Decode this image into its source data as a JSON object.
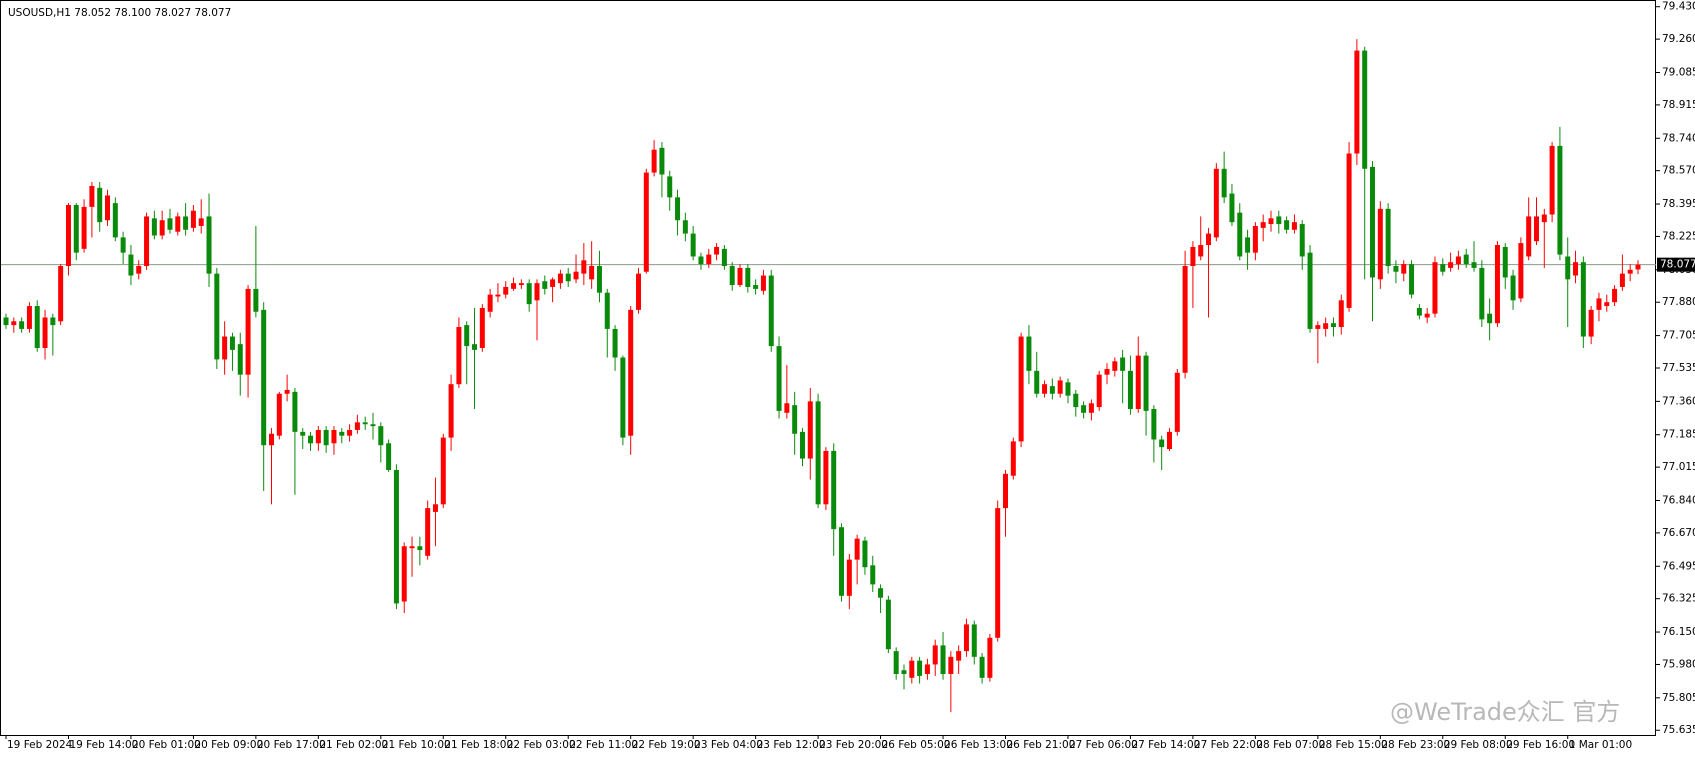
{
  "chart_data": {
    "type": "candlestick",
    "title": "USOUSD,H1  78.052 78.100 78.027 78.077",
    "watermark": "@WeTrade众汇 官方",
    "colors": {
      "up": "#ff0000",
      "down": "#0a8a0a",
      "price_line": "#8c9a8c"
    },
    "current_price": 78.077,
    "ylim": [
      75.61,
      79.46
    ],
    "yticks": [
      {
        "value": 79.43,
        "label": "79.430"
      },
      {
        "value": 79.26,
        "label": "79.260"
      },
      {
        "value": 79.085,
        "label": "79.085"
      },
      {
        "value": 78.915,
        "label": "78.915"
      },
      {
        "value": 78.74,
        "label": "78.740"
      },
      {
        "value": 78.57,
        "label": "78.570"
      },
      {
        "value": 78.395,
        "label": "78.395"
      },
      {
        "value": 78.225,
        "label": "78.225"
      },
      {
        "value": 78.05,
        "label": "78.050"
      },
      {
        "value": 77.88,
        "label": "77.880"
      },
      {
        "value": 77.705,
        "label": "77.705"
      },
      {
        "value": 77.535,
        "label": "77.535"
      },
      {
        "value": 77.36,
        "label": "77.360"
      },
      {
        "value": 77.185,
        "label": "77.185"
      },
      {
        "value": 77.015,
        "label": "77.015"
      },
      {
        "value": 76.84,
        "label": "76.840"
      },
      {
        "value": 76.67,
        "label": "76.670"
      },
      {
        "value": 76.495,
        "label": "76.495"
      },
      {
        "value": 76.325,
        "label": "76.325"
      },
      {
        "value": 76.15,
        "label": "76.150"
      },
      {
        "value": 75.98,
        "label": "75.980"
      },
      {
        "value": 75.805,
        "label": "75.805"
      },
      {
        "value": 75.635,
        "label": "75.635"
      }
    ],
    "x_labels": [
      "19 Feb 2024",
      "19 Feb 14:00",
      "20 Feb 01:00",
      "20 Feb 09:00",
      "20 Feb 17:00",
      "21 Feb 02:00",
      "21 Feb 10:00",
      "21 Feb 18:00",
      "22 Feb 03:00",
      "22 Feb 11:00",
      "22 Feb 19:00",
      "23 Feb 04:00",
      "23 Feb 12:00",
      "23 Feb 20:00",
      "26 Feb 05:00",
      "26 Feb 13:00",
      "26 Feb 21:00",
      "27 Feb 06:00",
      "27 Feb 14:00",
      "27 Feb 22:00",
      "28 Feb 07:00",
      "28 Feb 15:00",
      "28 Feb 23:00",
      "29 Feb 08:00",
      "29 Feb 16:00",
      "1 Mar 01:00"
    ],
    "ohlc": [
      [
        77.8,
        77.82,
        77.74,
        77.76
      ],
      [
        77.76,
        77.8,
        77.72,
        77.78
      ],
      [
        77.78,
        77.8,
        77.72,
        77.74
      ],
      [
        77.74,
        77.88,
        77.72,
        77.86
      ],
      [
        77.86,
        77.89,
        77.62,
        77.64
      ],
      [
        77.64,
        77.84,
        77.58,
        77.8
      ],
      [
        77.8,
        77.82,
        77.6,
        77.76
      ],
      [
        77.78,
        78.08,
        77.76,
        78.07
      ],
      [
        78.07,
        78.4,
        78.02,
        78.39
      ],
      [
        78.39,
        78.4,
        78.1,
        78.14
      ],
      [
        78.16,
        78.42,
        78.14,
        78.38
      ],
      [
        78.38,
        78.51,
        78.22,
        78.49
      ],
      [
        78.48,
        78.51,
        78.25,
        78.3
      ],
      [
        78.31,
        78.47,
        78.28,
        78.44
      ],
      [
        78.4,
        78.43,
        78.2,
        78.22
      ],
      [
        78.22,
        78.25,
        78.08,
        78.14
      ],
      [
        78.13,
        78.18,
        77.97,
        78.02
      ],
      [
        78.03,
        78.1,
        78.0,
        78.07
      ],
      [
        78.07,
        78.35,
        78.05,
        78.33
      ],
      [
        78.32,
        78.36,
        78.21,
        78.23
      ],
      [
        78.23,
        78.36,
        78.21,
        78.31
      ],
      [
        78.32,
        78.37,
        78.24,
        78.26
      ],
      [
        78.25,
        78.35,
        78.23,
        78.33
      ],
      [
        78.33,
        78.4,
        78.23,
        78.26
      ],
      [
        78.27,
        78.39,
        78.25,
        78.36
      ],
      [
        78.28,
        78.42,
        78.24,
        78.32
      ],
      [
        78.33,
        78.45,
        77.96,
        78.03
      ],
      [
        78.03,
        78.06,
        77.53,
        77.58
      ],
      [
        77.58,
        77.78,
        77.5,
        77.7
      ],
      [
        77.7,
        77.72,
        77.52,
        77.63
      ],
      [
        77.66,
        77.72,
        77.39,
        77.5
      ],
      [
        77.5,
        77.97,
        77.38,
        77.95
      ],
      [
        77.95,
        78.28,
        77.8,
        77.83
      ],
      [
        77.84,
        77.88,
        76.89,
        77.13
      ],
      [
        77.13,
        77.22,
        76.82,
        77.19
      ],
      [
        77.18,
        77.41,
        77.16,
        77.4
      ],
      [
        77.4,
        77.5,
        77.36,
        77.42
      ],
      [
        77.41,
        77.43,
        76.87,
        77.2
      ],
      [
        77.2,
        77.22,
        77.11,
        77.18
      ],
      [
        77.18,
        77.2,
        77.1,
        77.14
      ],
      [
        77.14,
        77.23,
        77.1,
        77.21
      ],
      [
        77.21,
        77.23,
        77.09,
        77.13
      ],
      [
        77.14,
        77.23,
        77.08,
        77.21
      ],
      [
        77.2,
        77.22,
        77.14,
        77.18
      ],
      [
        77.18,
        77.24,
        77.15,
        77.21
      ],
      [
        77.21,
        77.29,
        77.19,
        77.25
      ],
      [
        77.25,
        77.28,
        77.21,
        77.24
      ],
      [
        77.24,
        77.3,
        77.16,
        77.23
      ],
      [
        77.23,
        77.25,
        77.04,
        77.13
      ],
      [
        77.14,
        77.16,
        76.99,
        77.0
      ],
      [
        77.0,
        77.03,
        76.27,
        76.3
      ],
      [
        76.31,
        76.62,
        76.25,
        76.6
      ],
      [
        76.59,
        76.65,
        76.44,
        76.6
      ],
      [
        76.6,
        76.65,
        76.5,
        76.58
      ],
      [
        76.55,
        76.84,
        76.53,
        76.8
      ],
      [
        76.78,
        76.96,
        76.6,
        76.82
      ],
      [
        76.82,
        77.19,
        76.8,
        77.17
      ],
      [
        77.17,
        77.5,
        77.1,
        77.45
      ],
      [
        77.45,
        77.8,
        77.43,
        77.75
      ],
      [
        77.76,
        77.78,
        77.45,
        77.65
      ],
      [
        77.66,
        77.85,
        77.32,
        77.63
      ],
      [
        77.64,
        77.87,
        77.62,
        77.85
      ],
      [
        77.83,
        77.95,
        77.8,
        77.92
      ],
      [
        77.91,
        77.98,
        77.88,
        77.92
      ],
      [
        77.92,
        77.99,
        77.9,
        77.96
      ],
      [
        77.95,
        78.01,
        77.94,
        77.98
      ],
      [
        77.97,
        78.0,
        77.95,
        77.98
      ],
      [
        77.98,
        78.0,
        77.83,
        77.87
      ],
      [
        77.89,
        78.0,
        77.68,
        77.98
      ],
      [
        77.99,
        78.02,
        77.92,
        77.95
      ],
      [
        77.96,
        78.01,
        77.88,
        78.0
      ],
      [
        77.98,
        78.05,
        77.95,
        78.03
      ],
      [
        78.03,
        78.06,
        77.96,
        77.99
      ],
      [
        78.0,
        78.13,
        77.98,
        78.04
      ],
      [
        78.03,
        78.19,
        77.97,
        78.1
      ],
      [
        78.0,
        78.2,
        77.95,
        78.07
      ],
      [
        78.07,
        78.15,
        77.88,
        77.93
      ],
      [
        77.93,
        77.95,
        77.59,
        77.74
      ],
      [
        77.74,
        77.76,
        77.52,
        77.59
      ],
      [
        77.59,
        77.6,
        77.13,
        77.17
      ],
      [
        77.18,
        77.86,
        77.08,
        77.84
      ],
      [
        77.84,
        78.06,
        77.82,
        78.03
      ],
      [
        78.04,
        78.58,
        78.03,
        78.56
      ],
      [
        78.56,
        78.73,
        78.54,
        78.68
      ],
      [
        78.69,
        78.72,
        78.43,
        78.55
      ],
      [
        78.54,
        78.57,
        78.36,
        78.43
      ],
      [
        78.43,
        78.47,
        78.23,
        78.31
      ],
      [
        78.31,
        78.35,
        78.2,
        78.24
      ],
      [
        78.24,
        78.28,
        78.1,
        78.12
      ],
      [
        78.12,
        78.14,
        78.05,
        78.08
      ],
      [
        78.08,
        78.16,
        78.06,
        78.13
      ],
      [
        78.13,
        78.19,
        78.1,
        78.17
      ],
      [
        78.16,
        78.18,
        78.05,
        78.07
      ],
      [
        78.07,
        78.09,
        77.94,
        77.97
      ],
      [
        77.97,
        78.08,
        77.96,
        78.06
      ],
      [
        78.06,
        78.08,
        77.93,
        77.96
      ],
      [
        77.97,
        78.0,
        77.92,
        77.95
      ],
      [
        77.94,
        78.05,
        77.92,
        78.02
      ],
      [
        78.02,
        78.05,
        77.62,
        77.65
      ],
      [
        77.65,
        77.7,
        77.27,
        77.31
      ],
      [
        77.3,
        77.55,
        77.27,
        77.35
      ],
      [
        77.34,
        77.41,
        77.08,
        77.19
      ],
      [
        77.2,
        77.22,
        77.02,
        77.06
      ],
      [
        77.06,
        77.43,
        76.95,
        77.36
      ],
      [
        77.36,
        77.4,
        76.8,
        76.82
      ],
      [
        76.82,
        77.12,
        76.79,
        77.1
      ],
      [
        77.1,
        77.14,
        76.55,
        76.69
      ],
      [
        76.7,
        76.72,
        76.31,
        76.34
      ],
      [
        76.34,
        76.56,
        76.27,
        76.53
      ],
      [
        76.53,
        76.66,
        76.4,
        76.64
      ],
      [
        76.63,
        76.65,
        76.45,
        76.49
      ],
      [
        76.5,
        76.55,
        76.36,
        76.4
      ],
      [
        76.38,
        76.4,
        76.25,
        76.33
      ],
      [
        76.32,
        76.34,
        76.04,
        76.06
      ],
      [
        76.05,
        76.07,
        75.9,
        75.93
      ],
      [
        75.95,
        75.98,
        75.85,
        75.93
      ],
      [
        75.91,
        76.02,
        75.88,
        76.0
      ],
      [
        76.0,
        76.02,
        75.88,
        75.92
      ],
      [
        75.93,
        76.01,
        75.9,
        75.98
      ],
      [
        75.98,
        76.11,
        75.92,
        76.08
      ],
      [
        76.08,
        76.15,
        75.9,
        75.93
      ],
      [
        75.93,
        76.05,
        75.73,
        76.02
      ],
      [
        76.0,
        76.08,
        75.93,
        76.05
      ],
      [
        76.05,
        76.22,
        76.02,
        76.19
      ],
      [
        76.19,
        76.21,
        75.98,
        76.02
      ],
      [
        76.02,
        76.04,
        75.88,
        75.91
      ],
      [
        75.91,
        76.14,
        75.89,
        76.12
      ],
      [
        76.12,
        76.84,
        76.1,
        76.8
      ],
      [
        76.8,
        77.0,
        76.65,
        76.98
      ],
      [
        76.97,
        77.17,
        76.95,
        77.15
      ],
      [
        77.15,
        77.72,
        77.12,
        77.7
      ],
      [
        77.7,
        77.76,
        77.45,
        77.52
      ],
      [
        77.52,
        77.62,
        77.38,
        77.4
      ],
      [
        77.4,
        77.47,
        77.38,
        77.45
      ],
      [
        77.44,
        77.48,
        77.37,
        77.4
      ],
      [
        77.4,
        77.49,
        77.38,
        77.47
      ],
      [
        77.46,
        77.48,
        77.35,
        77.39
      ],
      [
        77.4,
        77.42,
        77.28,
        77.33
      ],
      [
        77.34,
        77.36,
        77.27,
        77.3
      ],
      [
        77.3,
        77.37,
        77.26,
        77.35
      ],
      [
        77.33,
        77.52,
        77.31,
        77.5
      ],
      [
        77.5,
        77.56,
        77.45,
        77.53
      ],
      [
        77.52,
        77.59,
        77.49,
        77.57
      ],
      [
        77.59,
        77.63,
        77.35,
        77.52
      ],
      [
        77.52,
        77.6,
        77.29,
        77.32
      ],
      [
        77.32,
        77.7,
        77.3,
        77.6
      ],
      [
        77.6,
        77.62,
        77.18,
        77.31
      ],
      [
        77.32,
        77.34,
        77.04,
        77.16
      ],
      [
        77.16,
        77.18,
        77.0,
        77.12
      ],
      [
        77.11,
        77.22,
        77.1,
        77.2
      ],
      [
        77.2,
        77.53,
        77.18,
        77.51
      ],
      [
        77.51,
        78.15,
        77.48,
        78.07
      ],
      [
        78.07,
        78.2,
        77.85,
        78.17
      ],
      [
        78.12,
        78.33,
        78.1,
        78.18
      ],
      [
        78.18,
        78.27,
        77.8,
        78.24
      ],
      [
        78.22,
        78.61,
        78.2,
        78.58
      ],
      [
        78.58,
        78.67,
        78.4,
        78.43
      ],
      [
        78.45,
        78.5,
        78.28,
        78.3
      ],
      [
        78.35,
        78.4,
        78.1,
        78.12
      ],
      [
        78.22,
        78.26,
        78.05,
        78.14
      ],
      [
        78.14,
        78.3,
        78.1,
        78.28
      ],
      [
        78.27,
        78.34,
        78.2,
        78.3
      ],
      [
        78.29,
        78.36,
        78.25,
        78.32
      ],
      [
        78.33,
        78.36,
        78.24,
        78.29
      ],
      [
        78.31,
        78.33,
        78.24,
        78.26
      ],
      [
        78.26,
        78.34,
        78.24,
        78.3
      ],
      [
        78.29,
        78.31,
        78.05,
        78.12
      ],
      [
        78.14,
        78.18,
        77.72,
        77.74
      ],
      [
        77.74,
        77.78,
        77.56,
        77.76
      ],
      [
        77.74,
        77.8,
        77.7,
        77.77
      ],
      [
        77.77,
        77.8,
        77.7,
        77.75
      ],
      [
        77.75,
        77.92,
        77.71,
        77.89
      ],
      [
        77.85,
        78.72,
        77.83,
        78.66
      ],
      [
        78.66,
        79.26,
        78.6,
        79.2
      ],
      [
        79.2,
        79.22,
        78.0,
        78.58
      ],
      [
        78.59,
        78.62,
        77.78,
        78.01
      ],
      [
        78.0,
        78.41,
        77.95,
        78.37
      ],
      [
        78.37,
        78.4,
        78.03,
        78.07
      ],
      [
        78.07,
        78.1,
        77.98,
        78.04
      ],
      [
        78.03,
        78.1,
        77.99,
        78.08
      ],
      [
        78.08,
        78.1,
        77.9,
        77.92
      ],
      [
        77.85,
        77.87,
        77.79,
        77.81
      ],
      [
        77.8,
        77.85,
        77.77,
        77.82
      ],
      [
        77.82,
        78.12,
        77.8,
        78.09
      ],
      [
        78.08,
        78.11,
        78.02,
        78.04
      ],
      [
        78.06,
        78.14,
        78.04,
        78.09
      ],
      [
        78.08,
        78.15,
        78.05,
        78.12
      ],
      [
        78.13,
        78.16,
        78.06,
        78.08
      ],
      [
        78.09,
        78.2,
        78.04,
        78.06
      ],
      [
        78.06,
        78.1,
        77.75,
        77.79
      ],
      [
        77.82,
        77.9,
        77.68,
        77.77
      ],
      [
        77.77,
        78.2,
        77.75,
        78.18
      ],
      [
        78.17,
        78.19,
        77.95,
        78.01
      ],
      [
        78.02,
        78.05,
        77.84,
        77.89
      ],
      [
        77.9,
        78.22,
        77.88,
        78.19
      ],
      [
        78.12,
        78.43,
        78.1,
        78.33
      ],
      [
        78.2,
        78.43,
        78.18,
        78.33
      ],
      [
        78.3,
        78.37,
        78.06,
        78.34
      ],
      [
        78.34,
        78.72,
        78.3,
        78.7
      ],
      [
        78.7,
        78.8,
        78.1,
        78.13
      ],
      [
        78.12,
        78.22,
        77.75,
        78.0
      ],
      [
        78.02,
        78.15,
        77.98,
        78.09
      ],
      [
        78.09,
        78.12,
        77.64,
        77.7
      ],
      [
        77.7,
        77.86,
        77.66,
        77.84
      ],
      [
        77.84,
        77.93,
        77.78,
        77.9
      ],
      [
        77.86,
        77.92,
        77.83,
        77.88
      ],
      [
        77.88,
        77.97,
        77.86,
        77.95
      ],
      [
        77.96,
        78.13,
        77.94,
        78.03
      ],
      [
        78.03,
        78.08,
        77.99,
        78.05
      ],
      [
        78.052,
        78.1,
        78.027,
        78.077
      ]
    ]
  }
}
